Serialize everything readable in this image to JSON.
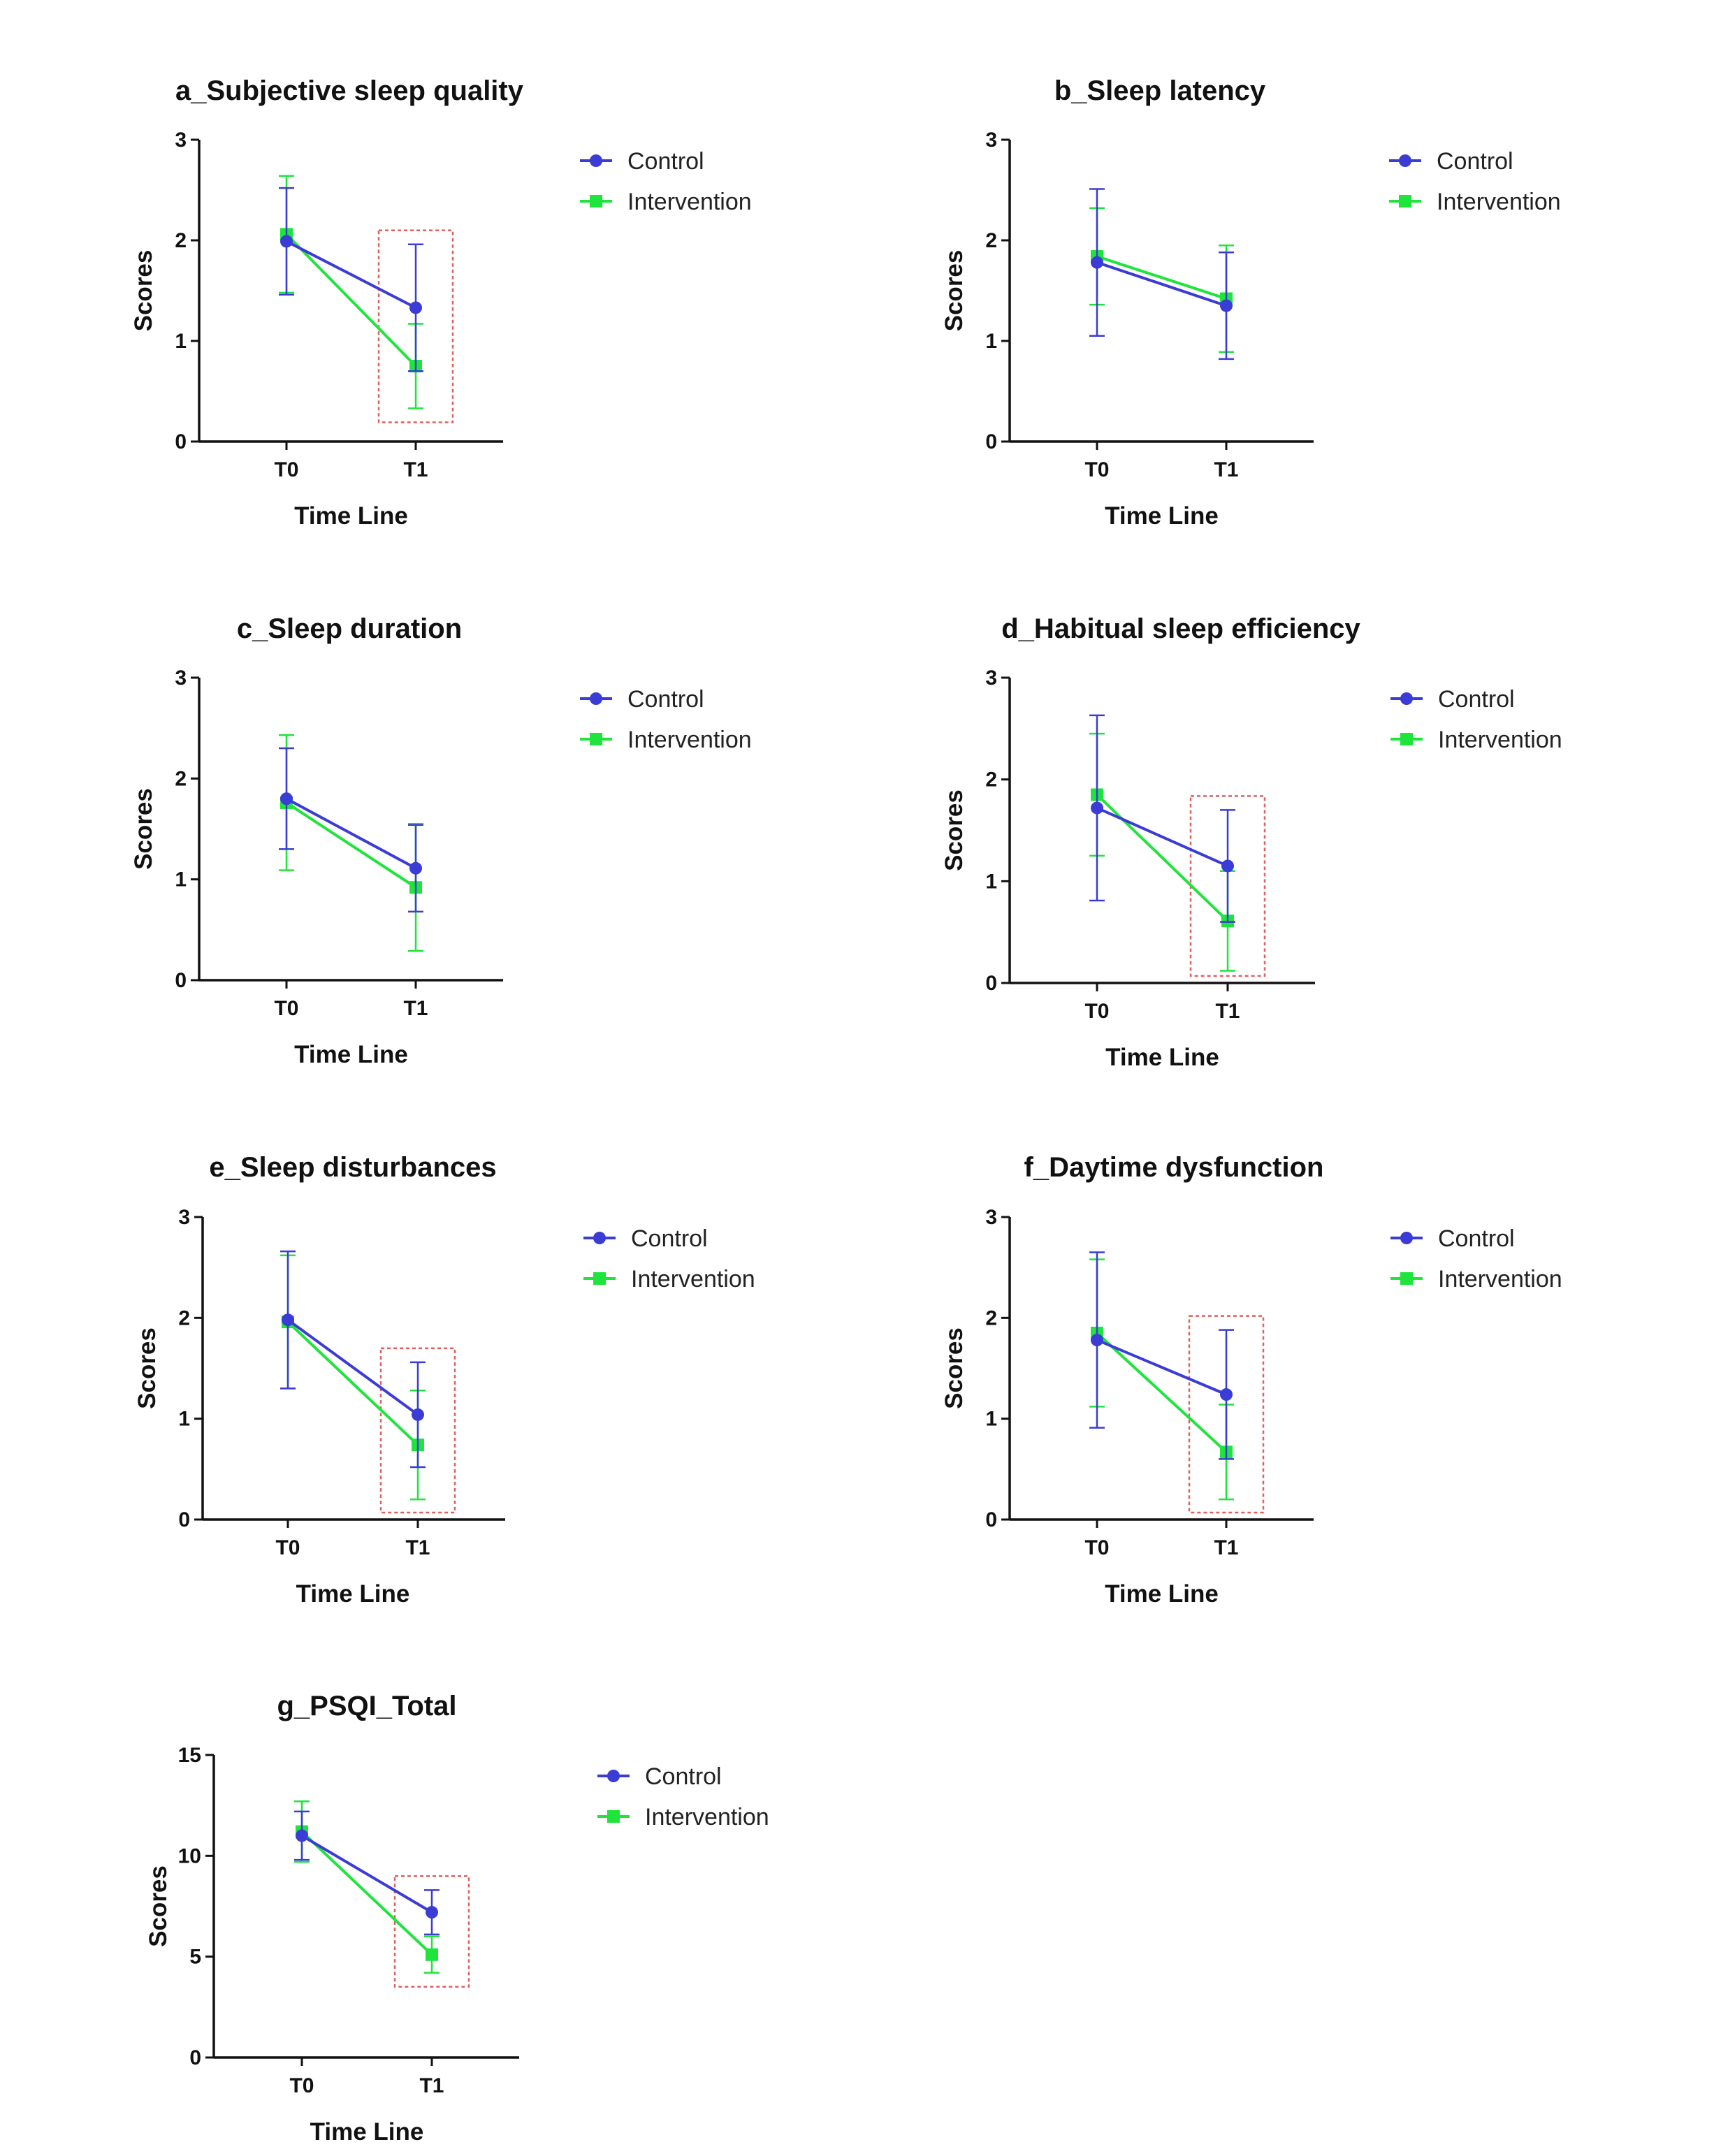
{
  "figure": {
    "colors": {
      "control": "#3b3bd6",
      "intervention": "#1fe43c",
      "highlight": "#e06060",
      "axis": "#111111"
    }
  },
  "chart_data": [
    {
      "id": "a",
      "type": "line",
      "title": "a_Subjective sleep quality",
      "xlabel": "Time Line",
      "ylabel": "Scores",
      "categories": [
        "T0",
        "T1"
      ],
      "ylim": [
        0,
        3
      ],
      "yticks": [
        "0",
        "1",
        "2",
        "3"
      ],
      "highlight_category": "T1",
      "series": [
        {
          "name": "Control",
          "marker": "circle",
          "values": [
            1.99,
            1.33
          ],
          "err": [
            0.53,
            0.63
          ]
        },
        {
          "name": "Intervention",
          "marker": "square",
          "values": [
            2.06,
            0.75
          ],
          "err": [
            0.58,
            0.42
          ]
        }
      ]
    },
    {
      "id": "b",
      "type": "line",
      "title": "b_Sleep latency",
      "xlabel": "Time Line",
      "ylabel": "Scores",
      "categories": [
        "T0",
        "T1"
      ],
      "ylim": [
        0,
        3
      ],
      "yticks": [
        "0",
        "1",
        "2",
        "3"
      ],
      "highlight_category": null,
      "series": [
        {
          "name": "Control",
          "marker": "circle",
          "values": [
            1.78,
            1.35
          ],
          "err": [
            0.73,
            0.53
          ]
        },
        {
          "name": "Intervention",
          "marker": "square",
          "values": [
            1.84,
            1.42
          ],
          "err": [
            0.48,
            0.53
          ]
        }
      ]
    },
    {
      "id": "c",
      "type": "line",
      "title": "c_Sleep duration",
      "xlabel": "Time Line",
      "ylabel": "Scores",
      "categories": [
        "T0",
        "T1"
      ],
      "ylim": [
        0,
        3
      ],
      "yticks": [
        "0",
        "1",
        "2",
        "3"
      ],
      "highlight_category": null,
      "series": [
        {
          "name": "Control",
          "marker": "circle",
          "values": [
            1.8,
            1.11
          ],
          "err": [
            0.5,
            0.43
          ]
        },
        {
          "name": "Intervention",
          "marker": "square",
          "values": [
            1.76,
            0.92
          ],
          "err": [
            0.67,
            0.63
          ]
        }
      ]
    },
    {
      "id": "d",
      "type": "line",
      "title": "d_Habitual sleep efficiency",
      "xlabel": "Time Line",
      "ylabel": "Scores",
      "categories": [
        "T0",
        "T1"
      ],
      "ylim": [
        0,
        3
      ],
      "yticks": [
        "0",
        "1",
        "2",
        "3"
      ],
      "highlight_category": "T1",
      "series": [
        {
          "name": "Control",
          "marker": "circle",
          "values": [
            1.72,
            1.15
          ],
          "err": [
            0.91,
            0.55
          ]
        },
        {
          "name": "Intervention",
          "marker": "square",
          "values": [
            1.85,
            0.61
          ],
          "err": [
            0.6,
            0.49
          ]
        }
      ]
    },
    {
      "id": "e",
      "type": "line",
      "title": "e_Sleep disturbances",
      "xlabel": "Time Line",
      "ylabel": "Scores",
      "categories": [
        "T0",
        "T1"
      ],
      "ylim": [
        0,
        3
      ],
      "yticks": [
        "0",
        "1",
        "2",
        "3"
      ],
      "highlight_category": "T1",
      "series": [
        {
          "name": "Control",
          "marker": "circle",
          "values": [
            1.98,
            1.04
          ],
          "err": [
            0.68,
            0.52
          ]
        },
        {
          "name": "Intervention",
          "marker": "square",
          "values": [
            1.96,
            0.74
          ],
          "err": [
            0.66,
            0.54
          ]
        }
      ]
    },
    {
      "id": "f",
      "type": "line",
      "title": "f_Daytime dysfunction",
      "xlabel": "Time Line",
      "ylabel": "Scores",
      "categories": [
        "T0",
        "T1"
      ],
      "ylim": [
        0,
        3
      ],
      "yticks": [
        "0",
        "1",
        "2",
        "3"
      ],
      "highlight_category": "T1",
      "series": [
        {
          "name": "Control",
          "marker": "circle",
          "values": [
            1.78,
            1.24
          ],
          "err": [
            0.87,
            0.64
          ]
        },
        {
          "name": "Intervention",
          "marker": "square",
          "values": [
            1.85,
            0.67
          ],
          "err": [
            0.73,
            0.47
          ]
        }
      ]
    },
    {
      "id": "g",
      "type": "line",
      "title": "g_PSQI_Total",
      "xlabel": "Time Line",
      "ylabel": "Scores",
      "categories": [
        "T0",
        "T1"
      ],
      "ylim": [
        0,
        15
      ],
      "yticks": [
        "0",
        "5",
        "10",
        "15"
      ],
      "highlight_category": "T1",
      "series": [
        {
          "name": "Control",
          "marker": "circle",
          "values": [
            11.0,
            7.2
          ],
          "err": [
            1.2,
            1.1
          ]
        },
        {
          "name": "Intervention",
          "marker": "square",
          "values": [
            11.2,
            5.1
          ],
          "err": [
            1.5,
            0.9
          ]
        }
      ]
    }
  ]
}
